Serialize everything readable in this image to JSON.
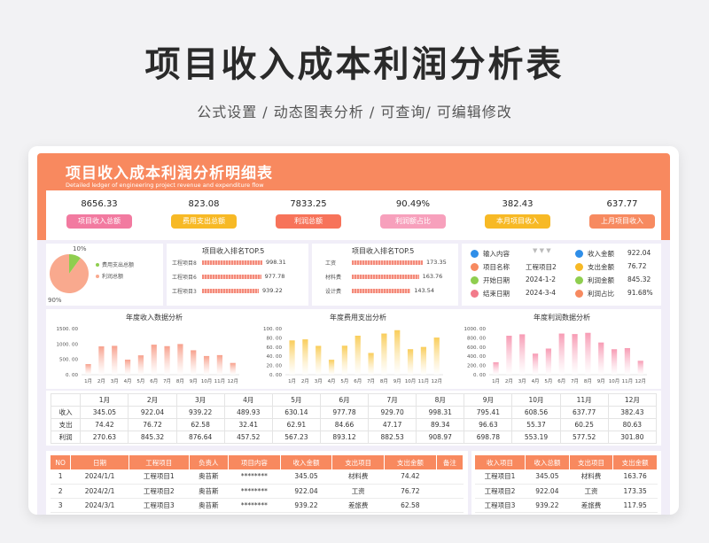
{
  "header": {
    "title": "项目收入成本利润分析表",
    "subtitle": "公式设置 / 动态图表分析 / 可查询/ 可编辑修改"
  },
  "sheet": {
    "title": "项目收入成本利润分析明细表",
    "subtitle": "Detailed ledger of engineering project revenue and expenditure flow"
  },
  "kpis": [
    {
      "value": "8656.33",
      "label": "项目收入总额",
      "color": "#f27aa0"
    },
    {
      "value": "823.08",
      "label": "费用支出总额",
      "color": "#f7b925"
    },
    {
      "value": "7833.25",
      "label": "利润总额",
      "color": "#f7735a"
    },
    {
      "value": "90.49%",
      "label": "利润额占比",
      "color": "#f7a0bc"
    },
    {
      "value": "382.43",
      "label": "本月项目收入",
      "color": "#f7b925"
    },
    {
      "value": "637.77",
      "label": "上月项目收入",
      "color": "#f78a60"
    }
  ],
  "pie": {
    "top_label": "10%",
    "bottom_label": "90%",
    "legend": [
      "费用支出总额",
      "利润总额"
    ],
    "slices": [
      0.1,
      0.9
    ],
    "colors": [
      "#8fce4f",
      "#f9a98e"
    ]
  },
  "rank_income": {
    "title": "项目收入排名TOP.5",
    "items": [
      {
        "name": "工程项目8",
        "value": "998.31",
        "v": 998.31
      },
      {
        "name": "工程项目6",
        "value": "977.78",
        "v": 977.78
      },
      {
        "name": "工程项目3",
        "value": "939.22",
        "v": 939.22
      }
    ]
  },
  "rank_expense": {
    "title": "项目收入排名TOP.5",
    "items": [
      {
        "name": "工资",
        "value": "173.35",
        "v": 173.35
      },
      {
        "name": "材料费",
        "value": "163.76",
        "v": 163.76
      },
      {
        "name": "设计费",
        "value": "143.54",
        "v": 143.54
      }
    ]
  },
  "query": {
    "input_label": "输入内容",
    "left": [
      {
        "label": "项目名称",
        "value": "工程项目2",
        "color": "#f78a60"
      },
      {
        "label": "开始日期",
        "value": "2024-1-2",
        "color": "#8fce4f"
      },
      {
        "label": "结束日期",
        "value": "2024-3-4",
        "color": "#f27a8a"
      }
    ],
    "right": [
      {
        "label": "收入金额",
        "value": "922.04",
        "color": "#2f8ee8"
      },
      {
        "label": "支出金额",
        "value": "76.72",
        "color": "#f7b925"
      },
      {
        "label": "利润金额",
        "value": "845.32",
        "color": "#8fce4f"
      },
      {
        "label": "利润占比",
        "value": "91.68%",
        "color": "#f78a60"
      }
    ],
    "first_color": "#2f8ee8"
  },
  "chart_data": [
    {
      "type": "bar",
      "title": "年度收入数据分析",
      "categories": [
        "1月",
        "2月",
        "3月",
        "4月",
        "5月",
        "6月",
        "7月",
        "8月",
        "9月",
        "10月",
        "11月",
        "12月"
      ],
      "values": [
        345.05,
        922.04,
        939.22,
        489.93,
        630.14,
        977.78,
        929.7,
        998.31,
        795.41,
        608.56,
        637.77,
        382.43
      ],
      "yticks": [
        "1500. 00",
        "1000. 00",
        "500. 00",
        "0. 00"
      ],
      "ylim": [
        0,
        1500
      ],
      "color": "#f7a08c"
    },
    {
      "type": "bar",
      "title": "年度费用支出分析",
      "categories": [
        "1月",
        "2月",
        "3月",
        "4月",
        "5月",
        "6月",
        "7月",
        "8月",
        "9月",
        "10月",
        "11月",
        "12月"
      ],
      "values": [
        74.42,
        76.72,
        62.58,
        32.41,
        62.91,
        84.66,
        47.17,
        89.34,
        96.63,
        55.37,
        60.25,
        80.63
      ],
      "yticks": [
        "100. 00",
        "80. 00",
        "60. 00",
        "40. 00",
        "20. 00",
        "0. 00"
      ],
      "ylim": [
        0,
        100
      ],
      "color": "#f9cd5a"
    },
    {
      "type": "bar",
      "title": "年度利润数据分析",
      "categories": [
        "1月",
        "2月",
        "3月",
        "4月",
        "5月",
        "6月",
        "7月",
        "8月",
        "9月",
        "10月",
        "11月",
        "12月"
      ],
      "values": [
        270.63,
        845.32,
        876.64,
        457.52,
        567.23,
        893.12,
        882.53,
        908.97,
        698.78,
        553.19,
        577.52,
        301.8
      ],
      "yticks": [
        "1000. 00",
        "800. 00",
        "600. 00",
        "400. 00",
        "200. 00",
        "0. 00"
      ],
      "ylim": [
        0,
        1000
      ],
      "color": "#f79bb4"
    }
  ],
  "monthly_table": {
    "months": [
      "1月",
      "2月",
      "3月",
      "4月",
      "5月",
      "6月",
      "7月",
      "8月",
      "9月",
      "10月",
      "11月",
      "12月"
    ],
    "rows": [
      {
        "label": "收入",
        "values": [
          "345.05",
          "922.04",
          "939.22",
          "489.93",
          "630.14",
          "977.78",
          "929.70",
          "998.31",
          "795.41",
          "608.56",
          "637.77",
          "382.43"
        ]
      },
      {
        "label": "支出",
        "values": [
          "74.42",
          "76.72",
          "62.58",
          "32.41",
          "62.91",
          "84.66",
          "47.17",
          "89.34",
          "96.63",
          "55.37",
          "60.25",
          "80.63"
        ]
      },
      {
        "label": "利润",
        "values": [
          "270.63",
          "845.32",
          "876.64",
          "457.52",
          "567.23",
          "893.12",
          "882.53",
          "908.97",
          "698.78",
          "553.19",
          "577.52",
          "301.80"
        ]
      }
    ]
  },
  "detail_table": {
    "headers": [
      "NO",
      "日期",
      "工程项目",
      "负责人",
      "项目内容",
      "收入金额",
      "支出项目",
      "支出金额",
      "备注"
    ],
    "rows": [
      [
        "1",
        "2024/1/1",
        "工程项目1",
        "奥苔斯",
        "********",
        "345.05",
        "材料费",
        "74.42",
        ""
      ],
      [
        "2",
        "2024/2/1",
        "工程项目2",
        "奥苔斯",
        "********",
        "922.04",
        "工资",
        "76.72",
        ""
      ],
      [
        "3",
        "2024/3/1",
        "工程项目3",
        "奥苔斯",
        "********",
        "939.22",
        "差旅费",
        "62.58",
        ""
      ]
    ]
  },
  "side_table": {
    "headers": [
      "收入项目",
      "收入总额",
      "支出项目",
      "支出金额"
    ],
    "rows": [
      [
        "工程项目1",
        "345.05",
        "材料费",
        "163.76"
      ],
      [
        "工程项目2",
        "922.04",
        "工资",
        "173.35"
      ],
      [
        "工程项目3",
        "939.22",
        "差旅费",
        "117.95"
      ]
    ]
  }
}
